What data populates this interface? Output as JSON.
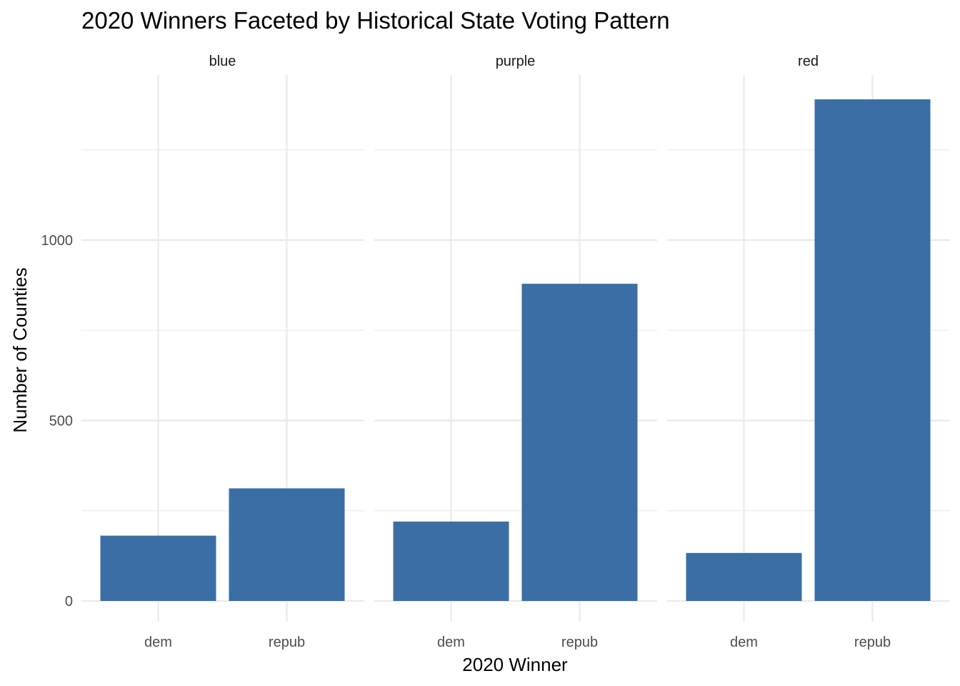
{
  "chart_data": {
    "type": "bar",
    "title": "2020 Winners Faceted by Historical State Voting Pattern",
    "xlabel": "2020 Winner",
    "ylabel": "Number of Counties",
    "ylim": [
      0,
      1400
    ],
    "yticks": [
      0,
      500,
      1000
    ],
    "yminor": [
      250,
      750,
      1250
    ],
    "grid": true,
    "categories": [
      "dem",
      "repub"
    ],
    "bar_color": "#3a6ea5",
    "facets": [
      {
        "label": "blue",
        "values": [
          181,
          312
        ]
      },
      {
        "label": "purple",
        "values": [
          220,
          879
        ]
      },
      {
        "label": "red",
        "values": [
          133,
          1390
        ]
      }
    ]
  }
}
